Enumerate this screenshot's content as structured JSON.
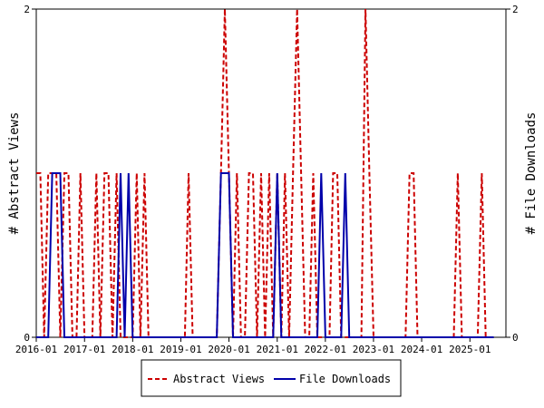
{
  "chart_data": {
    "type": "line",
    "title": "",
    "ylabel_left": "# Abstract Views",
    "ylabel_right": "# File Downloads",
    "x_axis": {
      "type": "date",
      "range": [
        "2016-01-01",
        "2025-10-01"
      ],
      "tick_labels": [
        "2016-01",
        "2017-01",
        "2018-01",
        "2019-01",
        "2020-01",
        "2021-01",
        "2022-01",
        "2023-01",
        "2024-01",
        "2025-01"
      ]
    },
    "y_left": {
      "ylim": [
        0,
        2
      ],
      "ticks": [
        "0",
        "2"
      ]
    },
    "y_right": {
      "ylim": [
        0,
        2
      ],
      "ticks": [
        "0",
        "2"
      ]
    },
    "grid": false,
    "legend_position": "bottom",
    "series": [
      {
        "name": "Abstract Views",
        "axis": "left",
        "color": "#cc0000",
        "style": "dashed",
        "points": [
          [
            "2016-01-01",
            1
          ],
          [
            "2016-02-01",
            1
          ],
          [
            "2016-03-01",
            0
          ],
          [
            "2016-04-01",
            1
          ],
          [
            "2016-05-01",
            1
          ],
          [
            "2016-06-01",
            1
          ],
          [
            "2016-07-01",
            0
          ],
          [
            "2016-08-01",
            1
          ],
          [
            "2016-09-01",
            1
          ],
          [
            "2016-10-01",
            0
          ],
          [
            "2016-11-01",
            0
          ],
          [
            "2016-12-01",
            1
          ],
          [
            "2017-01-01",
            0
          ],
          [
            "2017-02-01",
            0
          ],
          [
            "2017-03-01",
            0
          ],
          [
            "2017-04-01",
            1
          ],
          [
            "2017-05-01",
            0
          ],
          [
            "2017-06-01",
            1
          ],
          [
            "2017-07-01",
            1
          ],
          [
            "2017-08-01",
            0
          ],
          [
            "2017-09-01",
            1
          ],
          [
            "2017-10-01",
            0
          ],
          [
            "2017-11-01",
            0
          ],
          [
            "2017-12-01",
            0
          ],
          [
            "2018-01-01",
            0
          ],
          [
            "2018-02-01",
            1
          ],
          [
            "2018-03-01",
            0
          ],
          [
            "2018-04-01",
            1
          ],
          [
            "2018-05-01",
            0
          ],
          [
            "2018-06-01",
            0
          ],
          [
            "2018-07-01",
            0
          ],
          [
            "2018-08-01",
            0
          ],
          [
            "2018-09-01",
            0
          ],
          [
            "2018-10-01",
            0
          ],
          [
            "2018-11-01",
            0
          ],
          [
            "2018-12-01",
            0
          ],
          [
            "2019-01-01",
            0
          ],
          [
            "2019-02-01",
            0
          ],
          [
            "2019-03-01",
            1
          ],
          [
            "2019-04-01",
            0
          ],
          [
            "2019-05-01",
            0
          ],
          [
            "2019-06-01",
            0
          ],
          [
            "2019-07-01",
            0
          ],
          [
            "2019-08-01",
            0
          ],
          [
            "2019-09-01",
            0
          ],
          [
            "2019-10-01",
            0
          ],
          [
            "2019-11-01",
            1
          ],
          [
            "2019-12-01",
            2
          ],
          [
            "2020-01-01",
            1
          ],
          [
            "2020-02-01",
            0
          ],
          [
            "2020-03-01",
            1
          ],
          [
            "2020-04-01",
            0
          ],
          [
            "2020-05-01",
            0
          ],
          [
            "2020-06-01",
            1
          ],
          [
            "2020-07-01",
            1
          ],
          [
            "2020-08-01",
            0
          ],
          [
            "2020-09-01",
            1
          ],
          [
            "2020-10-01",
            0
          ],
          [
            "2020-11-01",
            1
          ],
          [
            "2020-12-01",
            0
          ],
          [
            "2021-01-01",
            1
          ],
          [
            "2021-02-01",
            0
          ],
          [
            "2021-03-01",
            1
          ],
          [
            "2021-04-01",
            0
          ],
          [
            "2021-05-01",
            1
          ],
          [
            "2021-06-01",
            2
          ],
          [
            "2021-07-01",
            1
          ],
          [
            "2021-08-01",
            0
          ],
          [
            "2021-09-01",
            0
          ],
          [
            "2021-10-01",
            1
          ],
          [
            "2021-11-01",
            0
          ],
          [
            "2021-12-01",
            0
          ],
          [
            "2022-01-01",
            0
          ],
          [
            "2022-02-01",
            0
          ],
          [
            "2022-03-01",
            1
          ],
          [
            "2022-04-01",
            1
          ],
          [
            "2022-05-01",
            0
          ],
          [
            "2022-06-01",
            0
          ],
          [
            "2022-07-01",
            0
          ],
          [
            "2022-08-01",
            0
          ],
          [
            "2022-09-01",
            0
          ],
          [
            "2022-10-01",
            0
          ],
          [
            "2022-11-01",
            2
          ],
          [
            "2022-12-01",
            1
          ],
          [
            "2023-01-01",
            0
          ],
          [
            "2023-02-01",
            0
          ],
          [
            "2023-03-01",
            0
          ],
          [
            "2023-04-01",
            0
          ],
          [
            "2023-05-01",
            0
          ],
          [
            "2023-06-01",
            0
          ],
          [
            "2023-07-01",
            0
          ],
          [
            "2023-08-01",
            0
          ],
          [
            "2023-09-01",
            0
          ],
          [
            "2023-10-01",
            1
          ],
          [
            "2023-11-01",
            1
          ],
          [
            "2023-12-01",
            0
          ],
          [
            "2024-01-01",
            0
          ],
          [
            "2024-02-01",
            0
          ],
          [
            "2024-03-01",
            0
          ],
          [
            "2024-04-01",
            0
          ],
          [
            "2024-05-01",
            0
          ],
          [
            "2024-06-01",
            0
          ],
          [
            "2024-07-01",
            0
          ],
          [
            "2024-08-01",
            0
          ],
          [
            "2024-09-01",
            0
          ],
          [
            "2024-10-01",
            1
          ],
          [
            "2024-11-01",
            0
          ],
          [
            "2024-12-01",
            0
          ],
          [
            "2025-01-01",
            0
          ],
          [
            "2025-02-01",
            0
          ],
          [
            "2025-03-01",
            0
          ],
          [
            "2025-04-01",
            1
          ],
          [
            "2025-05-01",
            0
          ],
          [
            "2025-06-01",
            0
          ],
          [
            "2025-07-01",
            0
          ]
        ]
      },
      {
        "name": "File Downloads",
        "axis": "right",
        "color": "#0000aa",
        "style": "solid",
        "points": [
          [
            "2016-01-01",
            0
          ],
          [
            "2016-02-01",
            0
          ],
          [
            "2016-03-01",
            0
          ],
          [
            "2016-04-01",
            0
          ],
          [
            "2016-05-01",
            1
          ],
          [
            "2016-06-01",
            1
          ],
          [
            "2016-07-01",
            1
          ],
          [
            "2016-08-01",
            0
          ],
          [
            "2016-09-01",
            0
          ],
          [
            "2016-10-01",
            0
          ],
          [
            "2016-11-01",
            0
          ],
          [
            "2016-12-01",
            0
          ],
          [
            "2017-01-01",
            0
          ],
          [
            "2017-02-01",
            0
          ],
          [
            "2017-03-01",
            0
          ],
          [
            "2017-04-01",
            0
          ],
          [
            "2017-05-01",
            0
          ],
          [
            "2017-06-01",
            0
          ],
          [
            "2017-07-01",
            0
          ],
          [
            "2017-08-01",
            0
          ],
          [
            "2017-09-01",
            0
          ],
          [
            "2017-10-01",
            1
          ],
          [
            "2017-11-01",
            0
          ],
          [
            "2017-12-01",
            1
          ],
          [
            "2018-01-01",
            0
          ],
          [
            "2018-02-01",
            0
          ],
          [
            "2018-03-01",
            0
          ],
          [
            "2018-04-01",
            0
          ],
          [
            "2018-05-01",
            0
          ],
          [
            "2018-06-01",
            0
          ],
          [
            "2018-07-01",
            0
          ],
          [
            "2018-08-01",
            0
          ],
          [
            "2018-09-01",
            0
          ],
          [
            "2018-10-01",
            0
          ],
          [
            "2018-11-01",
            0
          ],
          [
            "2018-12-01",
            0
          ],
          [
            "2019-01-01",
            0
          ],
          [
            "2019-02-01",
            0
          ],
          [
            "2019-03-01",
            0
          ],
          [
            "2019-04-01",
            0
          ],
          [
            "2019-05-01",
            0
          ],
          [
            "2019-06-01",
            0
          ],
          [
            "2019-07-01",
            0
          ],
          [
            "2019-08-01",
            0
          ],
          [
            "2019-09-01",
            0
          ],
          [
            "2019-10-01",
            0
          ],
          [
            "2019-11-01",
            1
          ],
          [
            "2019-12-01",
            1
          ],
          [
            "2020-01-01",
            1
          ],
          [
            "2020-02-01",
            0
          ],
          [
            "2020-03-01",
            0
          ],
          [
            "2020-04-01",
            0
          ],
          [
            "2020-05-01",
            0
          ],
          [
            "2020-06-01",
            0
          ],
          [
            "2020-07-01",
            0
          ],
          [
            "2020-08-01",
            0
          ],
          [
            "2020-09-01",
            0
          ],
          [
            "2020-10-01",
            0
          ],
          [
            "2020-11-01",
            0
          ],
          [
            "2020-12-01",
            0
          ],
          [
            "2021-01-01",
            1
          ],
          [
            "2021-02-01",
            0
          ],
          [
            "2021-03-01",
            0
          ],
          [
            "2021-04-01",
            0
          ],
          [
            "2021-05-01",
            0
          ],
          [
            "2021-06-01",
            0
          ],
          [
            "2021-07-01",
            0
          ],
          [
            "2021-08-01",
            0
          ],
          [
            "2021-09-01",
            0
          ],
          [
            "2021-10-01",
            0
          ],
          [
            "2021-11-01",
            0
          ],
          [
            "2021-12-01",
            1
          ],
          [
            "2022-01-01",
            0
          ],
          [
            "2022-02-01",
            0
          ],
          [
            "2022-03-01",
            0
          ],
          [
            "2022-04-01",
            0
          ],
          [
            "2022-05-01",
            0
          ],
          [
            "2022-06-01",
            1
          ],
          [
            "2022-07-01",
            0
          ],
          [
            "2022-08-01",
            0
          ],
          [
            "2022-09-01",
            0
          ],
          [
            "2022-10-01",
            0
          ],
          [
            "2022-11-01",
            0
          ],
          [
            "2022-12-01",
            0
          ],
          [
            "2023-01-01",
            0
          ],
          [
            "2023-02-01",
            0
          ],
          [
            "2023-03-01",
            0
          ],
          [
            "2023-04-01",
            0
          ],
          [
            "2023-05-01",
            0
          ],
          [
            "2023-06-01",
            0
          ],
          [
            "2023-07-01",
            0
          ],
          [
            "2023-08-01",
            0
          ],
          [
            "2023-09-01",
            0
          ],
          [
            "2023-10-01",
            0
          ],
          [
            "2023-11-01",
            0
          ],
          [
            "2023-12-01",
            0
          ],
          [
            "2024-01-01",
            0
          ],
          [
            "2024-02-01",
            0
          ],
          [
            "2024-03-01",
            0
          ],
          [
            "2024-04-01",
            0
          ],
          [
            "2024-05-01",
            0
          ],
          [
            "2024-06-01",
            0
          ],
          [
            "2024-07-01",
            0
          ],
          [
            "2024-08-01",
            0
          ],
          [
            "2024-09-01",
            0
          ],
          [
            "2024-10-01",
            0
          ],
          [
            "2024-11-01",
            0
          ],
          [
            "2024-12-01",
            0
          ],
          [
            "2025-01-01",
            0
          ],
          [
            "2025-02-01",
            0
          ],
          [
            "2025-03-01",
            0
          ],
          [
            "2025-04-01",
            0
          ],
          [
            "2025-05-01",
            0
          ],
          [
            "2025-06-01",
            0
          ],
          [
            "2025-07-01",
            0
          ]
        ]
      }
    ]
  }
}
